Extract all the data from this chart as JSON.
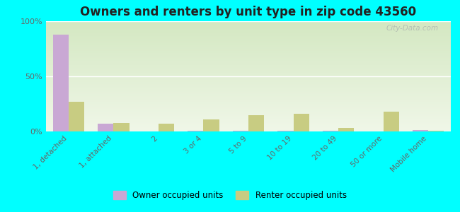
{
  "title": "Owners and renters by unit type in zip code 43560",
  "categories": [
    "1, detached",
    "1, attached",
    "2",
    "3 or 4",
    "5 to 9",
    "10 to 19",
    "20 to 49",
    "50 or more",
    "Mobile home"
  ],
  "owner_values": [
    88,
    7,
    0,
    0.5,
    0.5,
    0.5,
    0.5,
    0,
    1.5
  ],
  "renter_values": [
    27,
    8,
    7,
    11,
    15,
    16,
    3,
    18,
    0.5
  ],
  "owner_color": "#c9a8d4",
  "renter_color": "#c8cc82",
  "background_color": "#00ffff",
  "ylim": [
    0,
    100
  ],
  "yticks": [
    0,
    50,
    100
  ],
  "ytick_labels": [
    "0%",
    "50%",
    "100%"
  ],
  "watermark": "City-Data.com",
  "legend_owner": "Owner occupied units",
  "legend_renter": "Renter occupied units",
  "bar_width": 0.35,
  "title_fontsize": 12
}
